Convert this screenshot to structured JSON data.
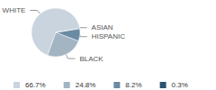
{
  "chart_data": {
    "type": "pie",
    "categories": [
      "WHITE",
      "BLACK",
      "HISPANIC",
      "ASIAN"
    ],
    "values": [
      66.7,
      24.8,
      8.2,
      0.3
    ],
    "value_labels": [
      "66.7%",
      "24.8%",
      "8.2%",
      "0.3%"
    ],
    "colors": [
      "#c9d4de",
      "#a3b4c3",
      "#6b8aa3",
      "#2b5470"
    ],
    "legend": "bottom"
  }
}
